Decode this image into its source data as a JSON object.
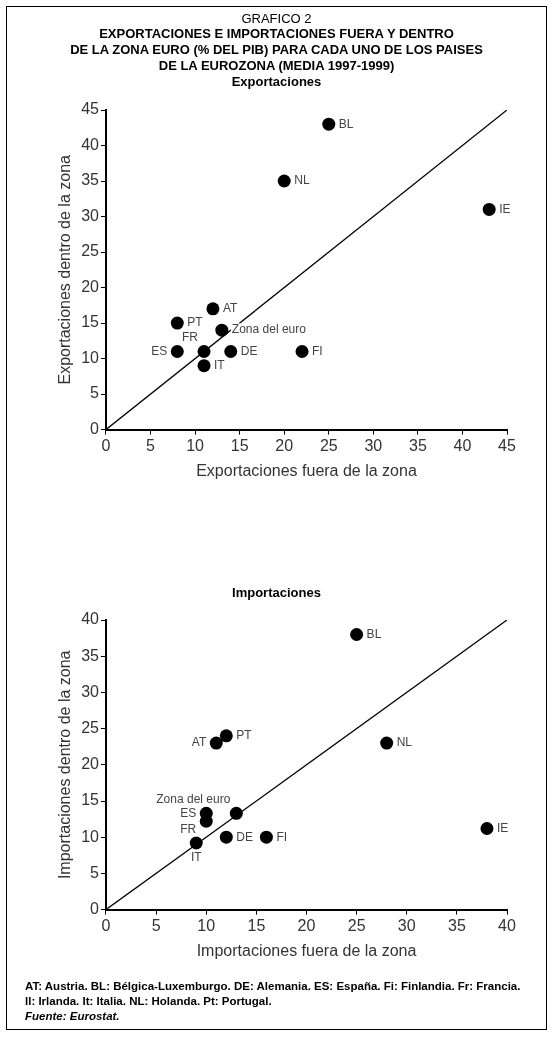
{
  "chart_data": [
    {
      "type": "scatter",
      "title": "GRAFICO 2",
      "subtitle": "EXPORTACIONES E IMPORTACIONES FUERA Y DENTRO\nDE LA ZONA EURO (% DEL PIB) PARA CADA UNO DE LOS PAISES\nDE LA EUROZONA (MEDIA 1997-1999)\nExportaciones",
      "xlabel": "Exportaciones fuera de la zona",
      "ylabel": "Exportaciones dentro de la zona",
      "xlim": [
        0,
        45
      ],
      "ylim": [
        0,
        45
      ],
      "xticks": [
        0,
        5,
        10,
        15,
        20,
        25,
        30,
        35,
        40,
        45
      ],
      "yticks": [
        0,
        5,
        10,
        15,
        20,
        25,
        30,
        35,
        40,
        45
      ],
      "marker": "circle",
      "series": [
        {
          "type": "scatter",
          "color": "#000000",
          "x": [
            25,
            20,
            43,
            12,
            8,
            13,
            8,
            11,
            14,
            22,
            11
          ],
          "values": [
            43,
            35,
            31,
            17,
            15,
            14,
            11,
            11,
            11,
            11,
            9
          ]
        },
        {
          "type": "line",
          "color": "#000000",
          "marker": "none",
          "x": [
            0,
            45
          ],
          "values": [
            0,
            45
          ]
        }
      ],
      "annotations": [
        {
          "text": "BL",
          "x": 25,
          "y": 43
        },
        {
          "text": "NL",
          "x": 20,
          "y": 35
        },
        {
          "text": "IE",
          "x": 43,
          "y": 31
        },
        {
          "text": "AT",
          "x": 12,
          "y": 17
        },
        {
          "text": "PT",
          "x": 8,
          "y": 15
        },
        {
          "text": "Zona del euro",
          "x": 13,
          "y": 14
        },
        {
          "text": "ES",
          "x": 8,
          "y": 11
        },
        {
          "text": "FR",
          "x": 11,
          "y": 11
        },
        {
          "text": "DE",
          "x": 14,
          "y": 11
        },
        {
          "text": "FI",
          "x": 22,
          "y": 11
        },
        {
          "text": "IT",
          "x": 11,
          "y": 9
        }
      ]
    },
    {
      "type": "scatter",
      "title": "Importaciones",
      "xlabel": "Importaciones fuera de la zona",
      "ylabel": "Importaciones dentro de la zona",
      "xlim": [
        0,
        40
      ],
      "ylim": [
        0,
        40
      ],
      "xticks": [
        0,
        5,
        10,
        15,
        20,
        25,
        30,
        35,
        40
      ],
      "yticks": [
        0,
        5,
        10,
        15,
        20,
        25,
        30,
        35,
        40
      ],
      "marker": "circle",
      "series": [
        {
          "type": "scatter",
          "color": "#000000",
          "x": [
            25,
            28,
            38,
            12,
            11,
            10,
            13,
            10,
            12,
            16,
            9
          ],
          "values": [
            38,
            23,
            11.2,
            24,
            23,
            13.3,
            13.3,
            12.2,
            10,
            10,
            9.2
          ]
        },
        {
          "type": "line",
          "color": "#000000",
          "marker": "none",
          "x": [
            0,
            40
          ],
          "values": [
            0,
            40
          ]
        }
      ],
      "annotations": [
        {
          "text": "BL",
          "x": 25,
          "y": 38
        },
        {
          "text": "NL",
          "x": 28,
          "y": 23
        },
        {
          "text": "IE",
          "x": 38,
          "y": 11.2
        },
        {
          "text": "PT",
          "x": 12,
          "y": 24
        },
        {
          "text": "AT",
          "x": 11,
          "y": 23
        },
        {
          "text": "ES",
          "x": 10,
          "y": 13.3
        },
        {
          "text": "Zona del euro",
          "x": 13,
          "y": 13.3
        },
        {
          "text": "FR",
          "x": 10,
          "y": 12.2
        },
        {
          "text": "DE",
          "x": 12,
          "y": 10
        },
        {
          "text": "FI",
          "x": 16,
          "y": 10
        },
        {
          "text": "IT",
          "x": 9,
          "y": 9.2
        },
        "AT: Austria. BL: Bélgica-Luxemburgo. DE: Alemania. ES: España. Fi: Finlandia. Fr: Francia. Il: Irlanda. It: Italia. NL: Holanda. Pt: Portugal.",
        "Fuente: Eurostat."
      ]
    }
  ]
}
